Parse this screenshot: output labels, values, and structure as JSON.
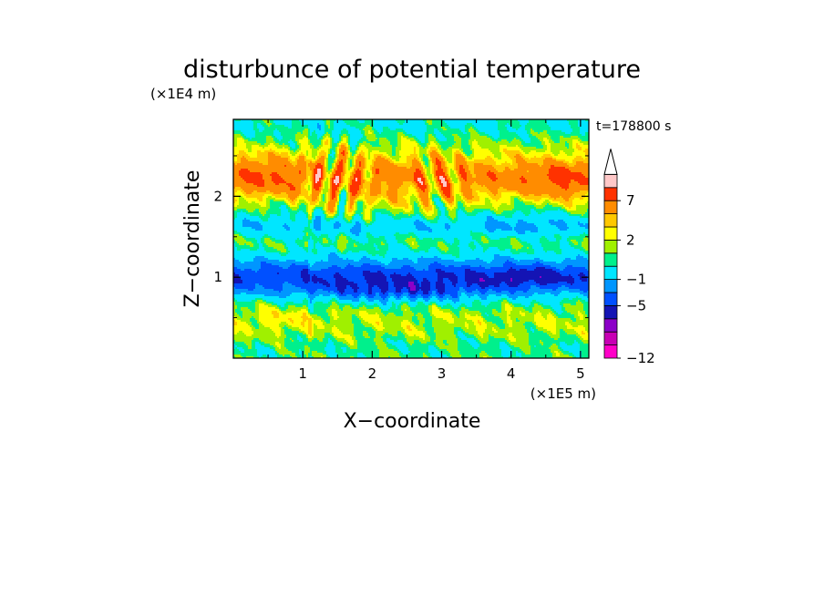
{
  "chart_data": {
    "type": "heatmap",
    "title": "disturbunce of potential temperature",
    "xlabel": "X−coordinate",
    "ylabel": "Z−coordinate",
    "x_unit": "(×1E5 m)",
    "y_unit": "(×1E4 m)",
    "time_label": "t=178800 s",
    "xlim": [
      0,
      5.12
    ],
    "ylim": [
      0,
      2.95
    ],
    "x_ticks": [
      1,
      2,
      3,
      4,
      5
    ],
    "y_ticks": [
      1,
      2
    ],
    "colorbar": {
      "levels": [
        -12,
        -11,
        -9,
        -7,
        -5,
        -3,
        -1,
        0,
        1,
        2,
        3,
        5,
        7,
        9,
        11
      ],
      "labels": [
        {
          "value": 7,
          "text": "7"
        },
        {
          "value": 2,
          "text": "2"
        },
        {
          "value": -1,
          "text": "−1"
        },
        {
          "value": -5,
          "text": "−5"
        },
        {
          "value": -12,
          "text": "−12"
        }
      ],
      "colors": [
        "#ff00c8",
        "#c800b4",
        "#8c00c8",
        "#1414b4",
        "#0050ff",
        "#0096ff",
        "#00e6ff",
        "#00f08c",
        "#a0f000",
        "#ffff00",
        "#ffc800",
        "#ff8c00",
        "#ff3200",
        "#ffc8c8",
        "#ffffff"
      ],
      "extends_max": true
    },
    "grid": false,
    "legend": "colorbar-right"
  }
}
